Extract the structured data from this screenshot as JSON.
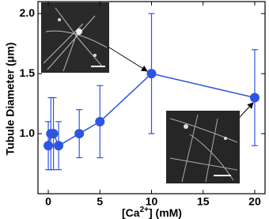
{
  "chart_data": {
    "type": "line",
    "x_label": [
      "[Ca",
      "2+",
      "] (mM)"
    ],
    "y_label": "Tubule Diameter (μm)",
    "x": [
      0,
      0.25,
      0.5,
      1,
      3,
      5,
      10,
      20
    ],
    "series": [
      {
        "color": "#2f55e0",
        "values": [
          0.9,
          1.0,
          1.0,
          0.9,
          1.0,
          1.1,
          1.5,
          1.3
        ],
        "errors": [
          0.2,
          0.3,
          0.3,
          0.2,
          0.2,
          0.3,
          0.5,
          0.4
        ]
      }
    ],
    "xlim": [
      -1,
      21
    ],
    "xticks": [
      0,
      5,
      10,
      15,
      20
    ],
    "ylim": [
      0.5,
      2.1
    ],
    "yticks": [
      {
        "value": 1,
        "label": "1.0"
      },
      1.5,
      {
        "value": 2,
        "label": "2.0"
      }
    ]
  }
}
